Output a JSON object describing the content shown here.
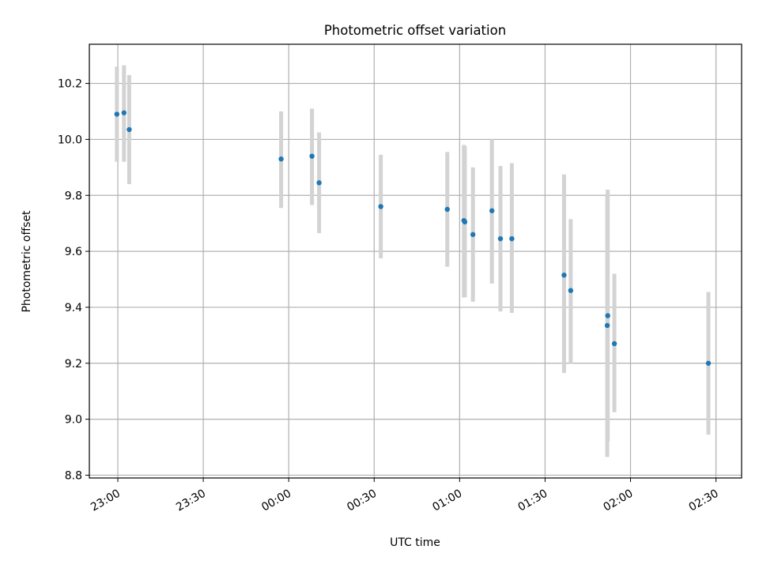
{
  "chart_data": {
    "type": "scatter",
    "title": "Photometric offset variation",
    "xlabel": "UTC time",
    "ylabel": "Photometric offset",
    "x_axis": {
      "type": "time",
      "ticks": [
        {
          "time": "23:00",
          "label": "23:00"
        },
        {
          "time": "23:30",
          "label": "23:30"
        },
        {
          "time": "24:00",
          "label": "00:00"
        },
        {
          "time": "24:30",
          "label": "00:30"
        },
        {
          "time": "25:00",
          "label": "01:00"
        },
        {
          "time": "25:30",
          "label": "01:30"
        },
        {
          "time": "26:00",
          "label": "02:00"
        },
        {
          "time": "26:30",
          "label": "02:30"
        }
      ],
      "range": [
        "22:50",
        "26:39"
      ]
    },
    "ylim": [
      8.79,
      10.34
    ],
    "yticks": [
      8.8,
      9.0,
      9.2,
      9.4,
      9.6,
      9.8,
      10.0,
      10.2
    ],
    "grid": true,
    "point_color": "#1f77b4",
    "errorbar_color": "#d3d3d3",
    "points": [
      {
        "time": "22:59:40",
        "y": 10.09,
        "err_low": 9.92,
        "err_high": 10.26
      },
      {
        "time": "23:02:10",
        "y": 10.095,
        "err_low": 9.92,
        "err_high": 10.265
      },
      {
        "time": "23:04:00",
        "y": 10.035,
        "err_low": 9.84,
        "err_high": 10.23
      },
      {
        "time": "23:57:20",
        "y": 9.93,
        "err_low": 9.755,
        "err_high": 10.1
      },
      {
        "time": "00:08:10",
        "y": 9.94,
        "err_low": 9.765,
        "err_high": 10.11
      },
      {
        "time": "00:10:40",
        "y": 9.845,
        "err_low": 9.665,
        "err_high": 10.025
      },
      {
        "time": "00:32:20",
        "y": 9.76,
        "err_low": 9.575,
        "err_high": 9.945
      },
      {
        "time": "00:55:40",
        "y": 9.75,
        "err_low": 9.545,
        "err_high": 9.955
      },
      {
        "time": "01:01:30",
        "y": 9.71,
        "err_low": 9.435,
        "err_high": 9.98
      },
      {
        "time": "01:01:50",
        "y": 9.705,
        "err_low": 9.435,
        "err_high": 9.975
      },
      {
        "time": "01:04:40",
        "y": 9.66,
        "err_low": 9.42,
        "err_high": 9.9
      },
      {
        "time": "01:11:20",
        "y": 9.745,
        "err_low": 9.485,
        "err_high": 10.0
      },
      {
        "time": "01:14:20",
        "y": 9.645,
        "err_low": 9.385,
        "err_high": 9.905
      },
      {
        "time": "01:18:20",
        "y": 9.645,
        "err_low": 9.38,
        "err_high": 9.915
      },
      {
        "time": "01:36:40",
        "y": 9.515,
        "err_low": 9.165,
        "err_high": 9.875
      },
      {
        "time": "01:39:00",
        "y": 9.46,
        "err_low": 9.2,
        "err_high": 9.715
      },
      {
        "time": "01:52:00",
        "y": 9.37,
        "err_low": 8.92,
        "err_high": 9.82
      },
      {
        "time": "01:51:50",
        "y": 9.335,
        "err_low": 8.865,
        "err_high": 9.805
      },
      {
        "time": "01:54:20",
        "y": 9.27,
        "err_low": 9.025,
        "err_high": 9.52
      },
      {
        "time": "02:27:20",
        "y": 9.2,
        "err_low": 8.945,
        "err_high": 9.455
      }
    ]
  }
}
